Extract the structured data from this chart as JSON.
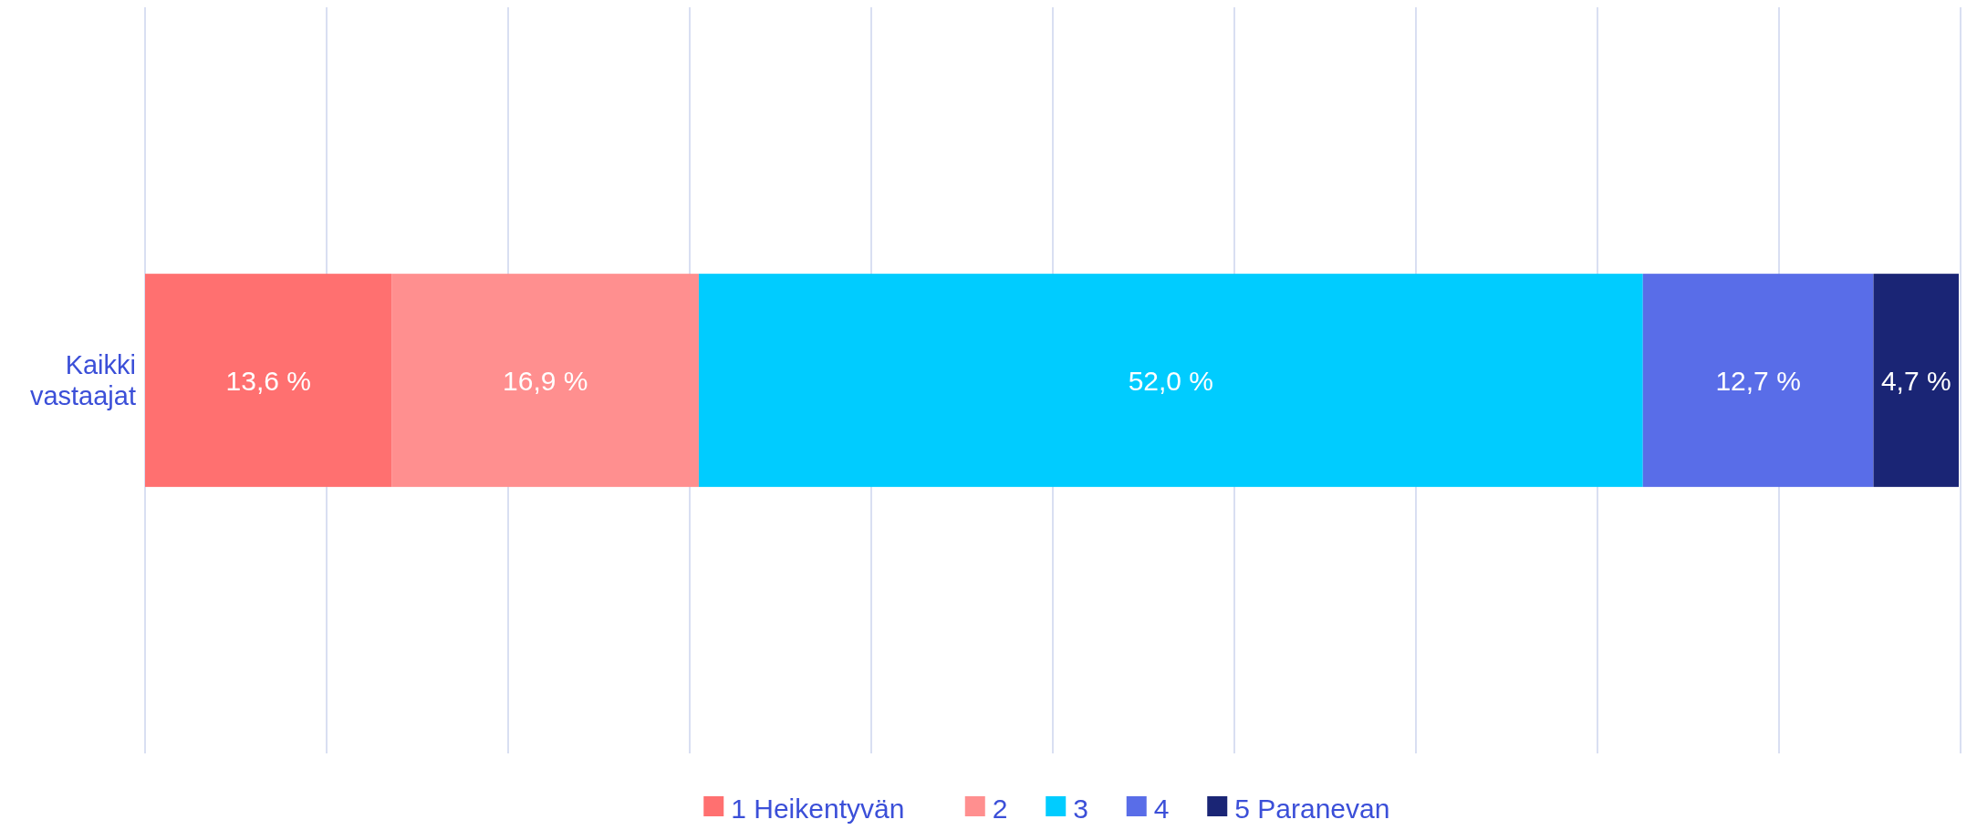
{
  "chart_data": {
    "type": "bar",
    "orientation": "horizontal",
    "stacked": true,
    "categories": [
      "Kaikki vastaajat"
    ],
    "series": [
      {
        "name": "1 Heikentyvän",
        "color": "#ff7070",
        "values": [
          13.6
        ],
        "value_labels": [
          "13,6 %"
        ]
      },
      {
        "name": "2",
        "color": "#ff8f8f",
        "values": [
          16.9
        ],
        "value_labels": [
          "16,9 %"
        ]
      },
      {
        "name": "3",
        "color": "#00ccff",
        "values": [
          52.0
        ],
        "value_labels": [
          "52,0 %"
        ]
      },
      {
        "name": "4",
        "color": "#596de8",
        "values": [
          12.7
        ],
        "value_labels": [
          "12,7 %"
        ]
      },
      {
        "name": "5 Paranevan",
        "color": "#1a2575",
        "values": [
          4.7
        ],
        "value_labels": [
          "4,7 %"
        ]
      }
    ],
    "xlim": [
      0,
      100
    ],
    "xticks": [
      {
        "value": 0,
        "label": null
      },
      {
        "value": 10,
        "label": null
      },
      {
        "value": 20,
        "label": null
      },
      {
        "value": 30,
        "label": null
      },
      {
        "value": 40,
        "label": null
      },
      {
        "value": 50,
        "label": null
      },
      {
        "value": 60,
        "label": null
      },
      {
        "value": 70,
        "label": null
      },
      {
        "value": 80,
        "label": null
      },
      {
        "value": 90,
        "label": null
      },
      {
        "value": 100,
        "label": null
      }
    ],
    "tick_labels": "y",
    "grid": "x",
    "legend": "bottom"
  }
}
